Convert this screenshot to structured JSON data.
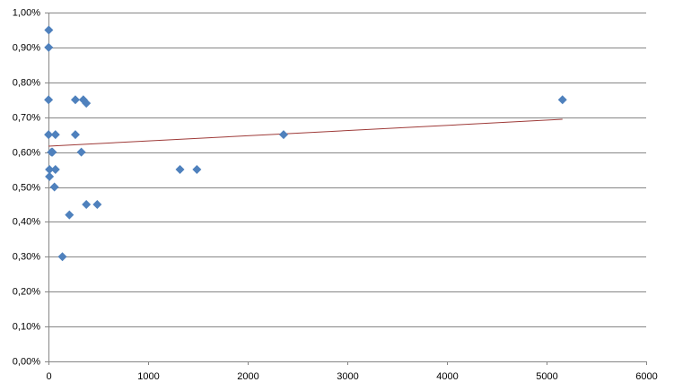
{
  "chart_data": {
    "type": "scatter",
    "x": [
      3,
      2,
      1,
      1,
      70,
      30,
      40,
      10,
      70,
      10,
      60,
      270,
      270,
      330,
      350,
      380,
      210,
      140,
      380,
      490,
      1320,
      1490,
      2360,
      5160
    ],
    "values": [
      0.95,
      0.9,
      0.75,
      0.65,
      0.65,
      0.6,
      0.6,
      0.55,
      0.55,
      0.53,
      0.5,
      0.75,
      0.65,
      0.6,
      0.75,
      0.74,
      0.42,
      0.3,
      0.45,
      0.45,
      0.55,
      0.55,
      0.65,
      0.75
    ],
    "color": "#4f81bd",
    "trendline": {
      "x": [
        0,
        5160
      ],
      "values": [
        0.617,
        0.694
      ],
      "color": "#9e3a38"
    },
    "xlim": [
      0,
      6000
    ],
    "xticks": [
      0,
      1000,
      2000,
      3000,
      4000,
      5000,
      6000
    ],
    "ylim": [
      0,
      1
    ],
    "yticks": [
      {
        "value": 0,
        "label": "0,00%"
      },
      {
        "value": 0.1,
        "label": "0,10%"
      },
      {
        "value": 0.2,
        "label": "0,20%"
      },
      {
        "value": 0.3,
        "label": "0,30%"
      },
      {
        "value": 0.4,
        "label": "0,40%"
      },
      {
        "value": 0.5,
        "label": "0,50%"
      },
      {
        "value": 0.6,
        "label": "0,60%"
      },
      {
        "value": 0.7,
        "label": "0,70%"
      },
      {
        "value": 0.8,
        "label": "0,80%"
      },
      {
        "value": 0.9,
        "label": "0,90%"
      },
      {
        "value": 1,
        "label": "1,00%"
      }
    ],
    "grid": true
  }
}
